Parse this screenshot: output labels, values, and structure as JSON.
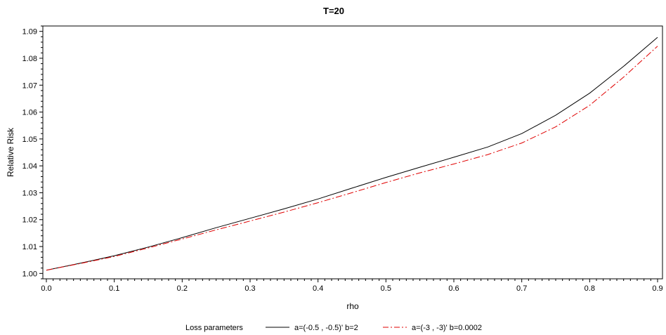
{
  "chart_data": {
    "type": "line",
    "title": "T=20",
    "xlabel": "rho",
    "ylabel": "Relative Risk",
    "xlim": [
      0.0,
      0.9
    ],
    "ylim": [
      0.998,
      1.092
    ],
    "x_ticks": [
      "0.0",
      "0.1",
      "0.2",
      "0.3",
      "0.4",
      "0.5",
      "0.6",
      "0.7",
      "0.8",
      "0.9"
    ],
    "y_ticks": [
      "1.00",
      "1.01",
      "1.02",
      "1.03",
      "1.04",
      "1.05",
      "1.06",
      "1.07",
      "1.08",
      "1.09"
    ],
    "grid": false,
    "legend": {
      "title": "Loss parameters",
      "placement": "bottom"
    },
    "x": [
      0.0,
      0.05,
      0.1,
      0.15,
      0.2,
      0.25,
      0.3,
      0.35,
      0.4,
      0.45,
      0.5,
      0.55,
      0.6,
      0.65,
      0.7,
      0.75,
      0.8,
      0.85,
      0.9
    ],
    "series": [
      {
        "name": "a=(-0.5 , -0.5)' b=2",
        "color": "#000000",
        "style": "solid",
        "values": [
          1.0012,
          1.0038,
          1.0066,
          1.0098,
          1.0133,
          1.017,
          1.0205,
          1.024,
          1.0277,
          1.0317,
          1.0357,
          1.0395,
          1.0432,
          1.047,
          1.052,
          1.0588,
          1.067,
          1.077,
          1.0878
        ]
      },
      {
        "name": "a=(-3 , -3)' b=0.0002",
        "color": "#e00000",
        "style": "dashdot",
        "values": [
          1.0012,
          1.0037,
          1.0063,
          1.0095,
          1.0128,
          1.0162,
          1.0195,
          1.0228,
          1.0263,
          1.03,
          1.0338,
          1.0374,
          1.0407,
          1.0442,
          1.0485,
          1.0545,
          1.0625,
          1.073,
          1.0845
        ]
      }
    ]
  }
}
